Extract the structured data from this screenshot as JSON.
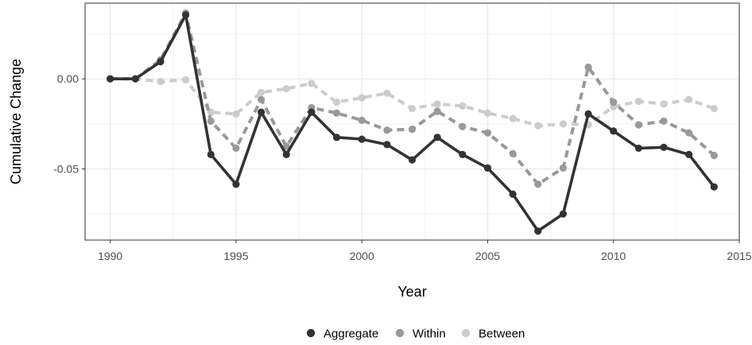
{
  "chart_data": {
    "type": "line",
    "xlabel": "Year",
    "ylabel": "Cumulative Change",
    "xlim": [
      1989,
      2015
    ],
    "ylim": [
      -0.0895,
      0.042
    ],
    "x_ticks": [
      1990,
      1995,
      2000,
      2005,
      2010,
      2015
    ],
    "y_ticks": [
      0.0,
      -0.05
    ],
    "y_tick_labels": [
      "0.00",
      "-0.05"
    ],
    "grid": true,
    "legend_position": "bottom",
    "x": [
      1990,
      1991,
      1992,
      1993,
      1994,
      1995,
      1996,
      1997,
      1998,
      1999,
      2000,
      2001,
      2002,
      2003,
      2004,
      2005,
      2006,
      2007,
      2008,
      2009,
      2010,
      2011,
      2012,
      2013,
      2014
    ],
    "series": [
      {
        "name": "Between",
        "color": "#cccccc",
        "dash": "dashed",
        "values": [
          0.0,
          0.0,
          -0.0015,
          -0.0005,
          -0.0185,
          -0.0195,
          -0.0075,
          -0.0055,
          -0.0025,
          -0.013,
          -0.0105,
          -0.008,
          -0.0165,
          -0.014,
          -0.015,
          -0.019,
          -0.022,
          -0.026,
          -0.025,
          -0.0255,
          -0.0155,
          -0.0125,
          -0.014,
          -0.0115,
          -0.0165
        ]
      },
      {
        "name": "Within",
        "color": "#999999",
        "dash": "dashed",
        "values": [
          0.0,
          0.0,
          0.0105,
          0.0365,
          -0.0235,
          -0.0385,
          -0.0115,
          -0.0375,
          -0.016,
          -0.019,
          -0.023,
          -0.0285,
          -0.028,
          -0.018,
          -0.0265,
          -0.03,
          -0.0415,
          -0.0585,
          -0.0495,
          0.0065,
          -0.013,
          -0.0255,
          -0.0235,
          -0.03,
          -0.0425
        ]
      },
      {
        "name": "Aggregate",
        "color": "#333333",
        "dash": "solid",
        "values": [
          0.0,
          0.0,
          0.0095,
          0.0355,
          -0.042,
          -0.0585,
          -0.0185,
          -0.042,
          -0.0185,
          -0.0325,
          -0.0335,
          -0.0365,
          -0.045,
          -0.0325,
          -0.042,
          -0.0495,
          -0.064,
          -0.0845,
          -0.075,
          -0.0195,
          -0.029,
          -0.0385,
          -0.038,
          -0.042,
          -0.06
        ]
      }
    ],
    "legend_order": [
      "Aggregate",
      "Within",
      "Between"
    ]
  }
}
